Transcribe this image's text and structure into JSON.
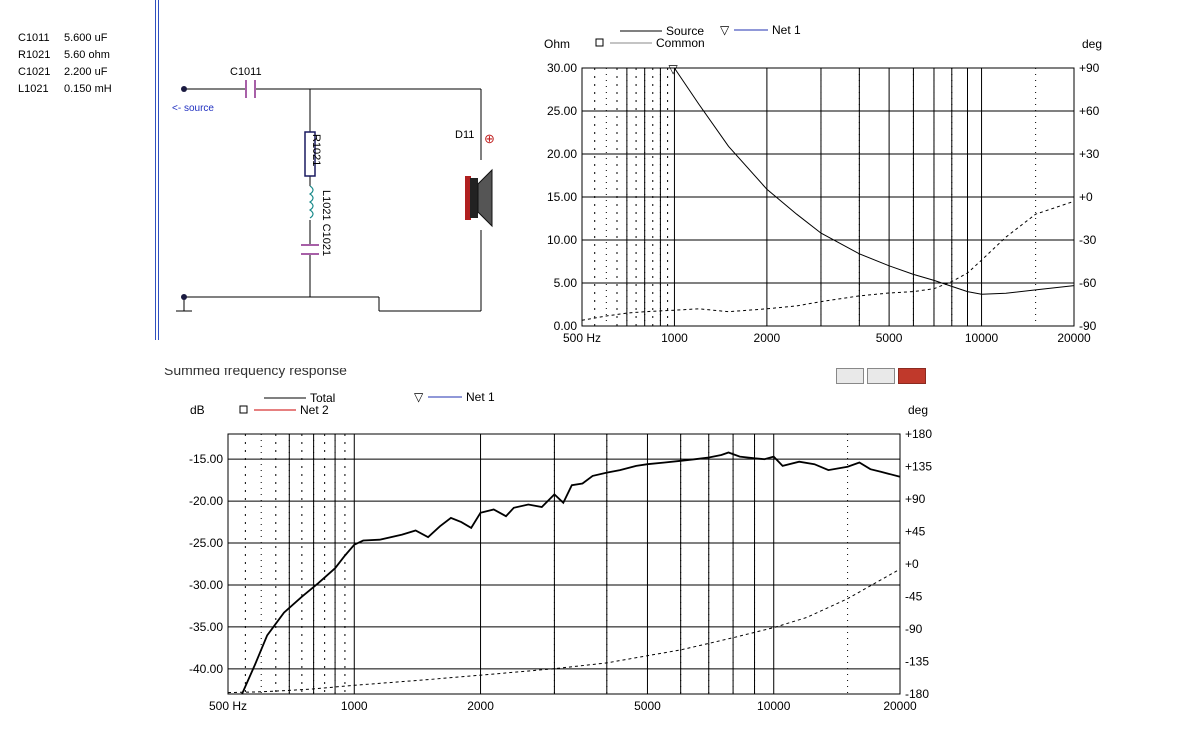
{
  "parts_list": [
    {
      "ref": "C1011",
      "value": "5.600 uF"
    },
    {
      "ref": "R1021",
      "value": "5.60 ohm"
    },
    {
      "ref": "C1021",
      "value": "2.200 uF"
    },
    {
      "ref": "L1021",
      "value": "0.150 mH"
    }
  ],
  "schematic": {
    "c1011_label": "C1011",
    "source_label": "<- source",
    "r1021_label": "R1021",
    "lc_label": "L1021 C1021",
    "driver_label": "D11",
    "plus_symbol": "⊕"
  },
  "window": {
    "title": "Summed frequency response",
    "buttons": [
      "minimize",
      "maximize",
      "close"
    ]
  },
  "chart_data": [
    {
      "type": "line",
      "title": "",
      "y_left_label": "Ohm",
      "y_right_label": "deg",
      "xscale": "log",
      "xlim": [
        500,
        20000
      ],
      "ylim": [
        0,
        30
      ],
      "y2lim": [
        -90,
        90
      ],
      "x_tick_labels": [
        "500 Hz",
        "1000",
        "2000",
        "5000",
        "10000",
        "20000"
      ],
      "x_tick_values": [
        500,
        1000,
        2000,
        5000,
        10000,
        20000
      ],
      "y_tick_labels": [
        "30.00",
        "25.00",
        "20.00",
        "15.00",
        "10.00",
        "5.00",
        "0.00"
      ],
      "y_tick_values": [
        30,
        25,
        20,
        15,
        10,
        5,
        0
      ],
      "y2_tick_labels": [
        "+90",
        "+60",
        "+30",
        "+0",
        "-30",
        "-60",
        "-90"
      ],
      "y2_tick_values": [
        90,
        60,
        30,
        0,
        -30,
        -60,
        -90
      ],
      "legend": [
        {
          "label": "Source",
          "style": "solid",
          "color": "#000000"
        },
        {
          "label": "Common",
          "style": "solid",
          "color": "#888888",
          "marker": "square"
        },
        {
          "label": "Net 1",
          "style": "solid",
          "color": "#2030b0",
          "marker": "triangle-down"
        }
      ],
      "series": [
        {
          "name": "Source",
          "axis": "left",
          "style": "solid",
          "x": [
            1000,
            1200,
            1500,
            2000,
            2500,
            3000,
            4000,
            5000,
            6000,
            7000,
            8000,
            9000,
            10000,
            12000,
            15000,
            20000
          ],
          "y": [
            30,
            25.8,
            20.9,
            15.9,
            13,
            10.8,
            8.4,
            7.0,
            6.0,
            5.3,
            4.6,
            4.0,
            3.7,
            3.8,
            4.2,
            4.7
          ]
        },
        {
          "name": "Source phase",
          "axis": "right",
          "style": "dashed",
          "x": [
            500,
            600,
            700,
            800,
            1000,
            1200,
            1500,
            2000,
            2500,
            3000,
            4000,
            5000,
            6000,
            7000,
            8000,
            9000,
            10000,
            12000,
            15000,
            20000
          ],
          "y": [
            -86,
            -83,
            -81,
            -80,
            -79,
            -78,
            -80,
            -78,
            -76,
            -73,
            -69,
            -67,
            -66,
            -64,
            -59,
            -53,
            -44,
            -28,
            -12,
            -3
          ]
        }
      ],
      "markers": [
        {
          "series": "Net 1",
          "x": 1000,
          "y": 30,
          "symbol": "▽"
        }
      ]
    },
    {
      "type": "line",
      "title": "",
      "y_left_label": "dB",
      "y_right_label": "deg",
      "xscale": "log",
      "xlim": [
        500,
        20000
      ],
      "ylim": [
        -43,
        -12
      ],
      "y2lim": [
        -180,
        180
      ],
      "x_tick_labels": [
        "500 Hz",
        "1000",
        "2000",
        "5000",
        "10000",
        "20000"
      ],
      "x_tick_values": [
        500,
        1000,
        2000,
        5000,
        10000,
        20000
      ],
      "y_tick_labels": [
        "-15.00",
        "-20.00",
        "-25.00",
        "-30.00",
        "-35.00",
        "-40.00"
      ],
      "y_tick_values": [
        -15,
        -20,
        -25,
        -30,
        -35,
        -40
      ],
      "y2_tick_labels": [
        "+180",
        "+135",
        "+90",
        "+45",
        "+0",
        "-45",
        "-90",
        "-135",
        "-180"
      ],
      "y2_tick_values": [
        180,
        135,
        90,
        45,
        0,
        -45,
        -90,
        -135,
        -180
      ],
      "legend": [
        {
          "label": "Total",
          "style": "solid",
          "color": "#000000"
        },
        {
          "label": "Net 2",
          "style": "solid",
          "color": "#cc0000",
          "marker": "square"
        },
        {
          "label": "Net 1",
          "style": "solid",
          "color": "#2030b0",
          "marker": "triangle-down"
        }
      ],
      "series": [
        {
          "name": "Total",
          "axis": "left",
          "style": "solid",
          "x": [
            540,
            580,
            620,
            680,
            750,
            820,
            900,
            950,
            1000,
            1050,
            1150,
            1300,
            1400,
            1500,
            1600,
            1700,
            1800,
            1900,
            2000,
            2150,
            2300,
            2400,
            2600,
            2800,
            3000,
            3150,
            3300,
            3500,
            3700,
            4000,
            4300,
            4700,
            5000,
            5500,
            6000,
            6500,
            7000,
            7500,
            7800,
            8300,
            9000,
            9500,
            10000,
            10500,
            11500,
            12500,
            13500,
            15000,
            16000,
            17000,
            18000,
            20000
          ],
          "y": [
            -43,
            -39.5,
            -36,
            -33.3,
            -31.4,
            -29.8,
            -28,
            -26.5,
            -25.2,
            -24.7,
            -24.6,
            -24.0,
            -23.5,
            -24.3,
            -23,
            -22,
            -22.5,
            -23.2,
            -21.4,
            -21,
            -21.8,
            -20.8,
            -20.4,
            -20.7,
            -19.2,
            -20.2,
            -18.1,
            -17.9,
            -17,
            -16.6,
            -16.3,
            -15.8,
            -15.6,
            -15.4,
            -15.2,
            -15.0,
            -14.8,
            -14.5,
            -14.2,
            -14.7,
            -14.9,
            -15.0,
            -14.7,
            -15.8,
            -15.3,
            -15.6,
            -16.3,
            -15.9,
            -15.4,
            -16.2,
            -16.5,
            -17.1
          ]
        },
        {
          "name": "Total phase",
          "axis": "right",
          "style": "dashed",
          "x": [
            500,
            600,
            700,
            800,
            1000,
            1500,
            2000,
            3000,
            4000,
            5000,
            6000,
            7000,
            8000,
            10000,
            12000,
            15000,
            18000,
            20000
          ],
          "y": [
            -178,
            -177,
            -175,
            -173,
            -168,
            -160,
            -154,
            -145,
            -137,
            -127,
            -119,
            -110,
            -102,
            -88,
            -74,
            -48,
            -22,
            -7
          ]
        }
      ],
      "markers": []
    }
  ]
}
